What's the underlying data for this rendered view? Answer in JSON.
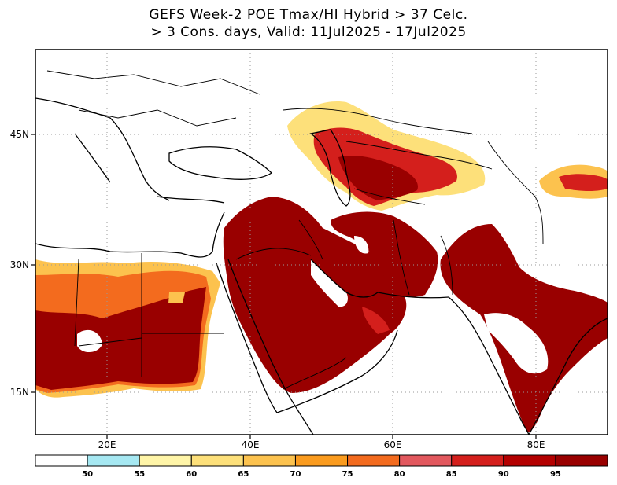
{
  "title": {
    "line1": "GEFS Week-2 POE Tmax/HI Hybrid > 37 Celc.",
    "line2": "> 3 Cons. days, Valid: 11Jul2025 - 17Jul2025"
  },
  "map": {
    "lon_range": [
      10,
      90
    ],
    "lat_range": [
      10,
      56
    ],
    "lon_ticks": [
      {
        "value": 20,
        "label": "20E"
      },
      {
        "value": 40,
        "label": "40E"
      },
      {
        "value": 60,
        "label": "60E"
      },
      {
        "value": 80,
        "label": "80E"
      }
    ],
    "lat_ticks": [
      {
        "value": 15,
        "label": "15N"
      },
      {
        "value": 30,
        "label": "30N"
      },
      {
        "value": 45,
        "label": "45N"
      }
    ],
    "grid": "dotted"
  },
  "colorbar": {
    "levels": [
      "50",
      "55",
      "60",
      "65",
      "70",
      "75",
      "80",
      "85",
      "90",
      "95"
    ],
    "colors": [
      "#ffffff",
      "#a6e8f2",
      "#fff5a8",
      "#fde07a",
      "#fcc24e",
      "#fa9b1e",
      "#f36b1e",
      "#e2585e",
      "#d41f1c",
      "#b30000",
      "#990000"
    ]
  }
}
